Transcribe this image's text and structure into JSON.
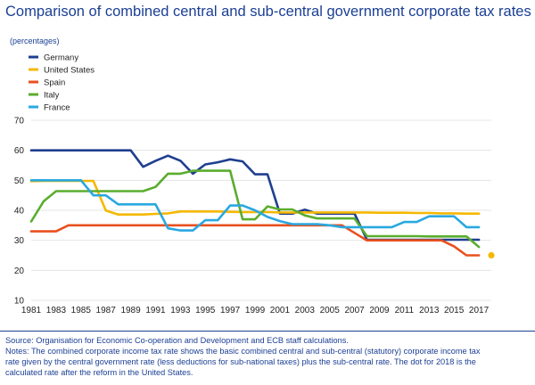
{
  "chart_data": {
    "type": "line",
    "title": "Comparison of combined central and sub-central government corporate tax rates",
    "unit_label": "(percentages)",
    "xlabel": "",
    "ylabel": "",
    "ylim": [
      10,
      70
    ],
    "yticks": [
      10,
      20,
      30,
      40,
      50,
      60,
      70
    ],
    "xlim": [
      1981,
      2018
    ],
    "xticks": [
      1981,
      1983,
      1985,
      1987,
      1989,
      1991,
      1993,
      1995,
      1997,
      1999,
      2001,
      2003,
      2005,
      2007,
      2009,
      2011,
      2013,
      2015,
      2017
    ],
    "grid": true,
    "legend_position": "top-left",
    "x": [
      1981,
      1982,
      1983,
      1984,
      1985,
      1986,
      1987,
      1988,
      1989,
      1990,
      1991,
      1992,
      1993,
      1994,
      1995,
      1996,
      1997,
      1998,
      1999,
      2000,
      2001,
      2002,
      2003,
      2004,
      2005,
      2006,
      2007,
      2008,
      2009,
      2010,
      2011,
      2012,
      2013,
      2014,
      2015,
      2016,
      2017
    ],
    "series": [
      {
        "name": "Germany",
        "color": "#1f3f8f",
        "values": [
          60,
          60,
          60,
          60,
          60,
          60,
          60,
          60,
          60,
          54.5,
          56.5,
          58.2,
          56.5,
          52.2,
          55.3,
          56,
          57,
          56.3,
          52,
          52,
          38.9,
          38.9,
          40.2,
          38.9,
          38.9,
          38.9,
          38.9,
          30.2,
          30.2,
          30.2,
          30.2,
          30.2,
          30.2,
          30.2,
          30.2,
          30.2,
          30.2
        ]
      },
      {
        "name": "United States",
        "color": "#f5b800",
        "values": [
          49.7,
          49.8,
          49.8,
          49.8,
          49.8,
          49.8,
          39.9,
          38.6,
          38.6,
          38.6,
          38.8,
          39,
          39.6,
          39.6,
          39.6,
          39.6,
          39.5,
          39.4,
          39.4,
          39.4,
          39.3,
          39.3,
          39.3,
          39.3,
          39.3,
          39.3,
          39.3,
          39.3,
          39.2,
          39.2,
          39.2,
          39.1,
          39.1,
          39,
          39,
          38.9,
          38.9
        ]
      },
      {
        "name": "Spain",
        "color": "#e8501f",
        "values": [
          33,
          33,
          33,
          35,
          35,
          35,
          35,
          35,
          35,
          35,
          35,
          35,
          35,
          35,
          35,
          35,
          35,
          35,
          35,
          35,
          35,
          35,
          35,
          35,
          35,
          35,
          32.5,
          30,
          30,
          30,
          30,
          30,
          30,
          30,
          28,
          25,
          25
        ]
      },
      {
        "name": "Italy",
        "color": "#5aad2e",
        "values": [
          36.3,
          43,
          46.4,
          46.4,
          46.4,
          46.4,
          46.4,
          46.4,
          46.4,
          46.4,
          47.8,
          52.2,
          52.2,
          53.2,
          53.2,
          53.2,
          53.2,
          37,
          37,
          41.3,
          40.3,
          40.3,
          38.3,
          37.3,
          37.3,
          37.3,
          37.3,
          31.4,
          31.4,
          31.4,
          31.4,
          31.4,
          31.3,
          31.3,
          31.3,
          31.3,
          27.8
        ]
      },
      {
        "name": "France",
        "color": "#29a8e0",
        "values": [
          50,
          50,
          50,
          50,
          50,
          45,
          45,
          42,
          42,
          42,
          42,
          34,
          33.3,
          33.3,
          36.7,
          36.7,
          41.6,
          41.6,
          40,
          37.8,
          36.4,
          35.4,
          35.4,
          35.4,
          35,
          34.4,
          34.4,
          34.4,
          34.4,
          34.4,
          36.1,
          36.1,
          38,
          38,
          38,
          34.4,
          34.4
        ]
      }
    ],
    "annotations": [
      {
        "label": "2018 United States",
        "x": 2018,
        "y": 25,
        "color": "#f5b800"
      }
    ]
  },
  "footer": {
    "source": "Source: Organisation for Economic Co-operation and Development and ECB staff calculations.",
    "notes_line1": "Notes: The combined corporate income tax rate shows the basic combined central and sub-central (statutory) corporate income tax",
    "notes_line2": "rate given by the central government rate (less deductions for sub-national taxes) plus the sub-central rate. The dot for 2018 is the",
    "notes_line3": "calculated rate after the reform in the United States."
  },
  "colors": {
    "title": "#1b3f94",
    "footer_text": "#1b3f94",
    "axis_text": "#222222",
    "grid": "#e4e4e4"
  }
}
